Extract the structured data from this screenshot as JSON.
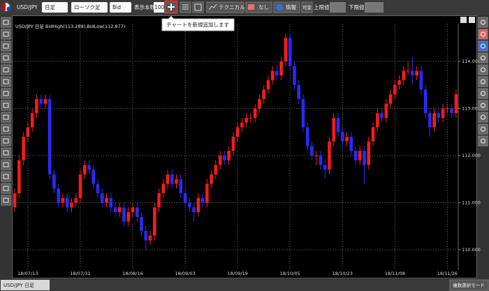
{
  "toolbar": {
    "symbol": "USD/JPY",
    "period": "日足",
    "chart_type": "ローソク足",
    "price": "Bid",
    "count_label": "表示本数",
    "count": 100,
    "technical": "テクニカル",
    "flag": "なし",
    "info": "情報",
    "variable": "可変",
    "upper": "上限値",
    "lower": "下限値"
  },
  "tooltip": "チャートを新規追加します",
  "bottom": {
    "tab": "USD/JPY 日足",
    "mode": "複数選択モード"
  },
  "chart_data": {
    "type": "candlestick",
    "header": "USD/JPY 日足 BidHigh(113.289),BidLow(112.877)",
    "categories": [
      null,
      null,
      null,
      "18/07/13",
      null,
      null,
      null,
      null,
      null,
      null,
      null,
      null,
      null,
      null,
      null,
      "18/07/31",
      null,
      null,
      null,
      null,
      null,
      null,
      null,
      null,
      null,
      null,
      null,
      "18/08/16",
      null,
      null,
      null,
      null,
      null,
      null,
      null,
      null,
      null,
      null,
      null,
      "18/09/03",
      null,
      null,
      null,
      null,
      null,
      null,
      null,
      null,
      null,
      null,
      null,
      "18/09/19",
      null,
      null,
      null,
      null,
      null,
      null,
      null,
      null,
      null,
      null,
      null,
      "18/10/05",
      null,
      null,
      null,
      null,
      null,
      null,
      null,
      null,
      null,
      null,
      null,
      "18/10/23",
      null,
      null,
      null,
      null,
      null,
      null,
      null,
      null,
      null,
      null,
      null,
      "18/11/08",
      null,
      null,
      null,
      null,
      null,
      null,
      null,
      null,
      null,
      null,
      null,
      "18/11/26",
      null,
      null
    ],
    "open": [
      110.9,
      111.2,
      111.9,
      112.4,
      112.6,
      112.9,
      113.2,
      113.1,
      113.2,
      111.6,
      111.3,
      111.0,
      111.1,
      110.9,
      111.0,
      111.1,
      111.6,
      111.8,
      111.7,
      111.4,
      111.2,
      111.0,
      111.1,
      110.9,
      110.8,
      110.9,
      110.6,
      110.8,
      110.9,
      110.7,
      110.4,
      110.2,
      110.3,
      110.9,
      111.2,
      111.4,
      111.6,
      111.4,
      111.5,
      111.2,
      111.0,
      110.9,
      110.8,
      111.1,
      111.0,
      111.4,
      111.6,
      111.8,
      112.0,
      111.9,
      112.1,
      112.4,
      112.6,
      112.7,
      112.8,
      112.8,
      113.0,
      113.2,
      113.4,
      113.6,
      113.8,
      113.7,
      114.0,
      114.5,
      113.9,
      113.5,
      113.2,
      112.6,
      112.2,
      112.0,
      112.0,
      111.8,
      111.7,
      112.3,
      112.8,
      112.5,
      112.3,
      112.4,
      112.1,
      111.9,
      112.1,
      111.8,
      112.3,
      112.6,
      112.9,
      112.8,
      113.1,
      113.3,
      113.5,
      113.6,
      113.8,
      113.8,
      113.7,
      113.8,
      113.4,
      112.9,
      112.6,
      112.9,
      112.8,
      113.0,
      113.0,
      112.9
    ],
    "high": [
      111.3,
      112.0,
      112.5,
      112.7,
      113.0,
      113.3,
      113.3,
      113.3,
      113.3,
      111.7,
      111.4,
      111.2,
      111.2,
      111.1,
      111.2,
      111.7,
      111.9,
      111.9,
      111.8,
      111.5,
      111.3,
      111.2,
      111.2,
      111.0,
      111.0,
      111.0,
      110.9,
      111.0,
      111.0,
      110.8,
      110.5,
      110.4,
      111.0,
      111.3,
      111.5,
      111.7,
      111.7,
      111.6,
      111.6,
      111.3,
      111.1,
      111.0,
      111.2,
      111.2,
      111.5,
      111.7,
      111.9,
      112.1,
      112.1,
      112.2,
      112.5,
      112.7,
      112.8,
      112.9,
      112.9,
      113.1,
      113.3,
      113.5,
      113.7,
      113.9,
      113.9,
      114.1,
      114.6,
      114.6,
      114.0,
      113.6,
      113.3,
      112.7,
      112.3,
      112.1,
      112.1,
      111.9,
      112.4,
      112.9,
      112.9,
      112.6,
      112.5,
      112.5,
      112.2,
      112.2,
      112.2,
      112.4,
      112.7,
      113.0,
      113.0,
      113.2,
      113.4,
      113.6,
      113.7,
      113.9,
      114.0,
      114.1,
      113.9,
      113.9,
      113.5,
      113.0,
      113.0,
      113.0,
      113.1,
      113.1,
      113.1,
      113.4
    ],
    "low": [
      110.8,
      111.1,
      111.8,
      112.3,
      112.5,
      112.8,
      113.0,
      113.0,
      111.5,
      111.2,
      110.9,
      110.9,
      110.8,
      110.8,
      110.9,
      111.0,
      111.5,
      111.6,
      111.3,
      111.1,
      110.9,
      110.9,
      110.8,
      110.7,
      110.7,
      110.5,
      110.5,
      110.7,
      110.6,
      110.3,
      110.0,
      110.1,
      110.2,
      110.8,
      111.1,
      111.3,
      111.3,
      111.3,
      111.1,
      110.9,
      110.8,
      110.6,
      110.7,
      110.9,
      110.9,
      111.3,
      111.5,
      111.7,
      111.8,
      111.8,
      112.0,
      112.3,
      112.5,
      112.6,
      112.7,
      112.7,
      112.9,
      113.1,
      113.3,
      113.5,
      113.6,
      113.6,
      113.9,
      113.8,
      113.4,
      113.1,
      112.5,
      112.1,
      111.9,
      111.8,
      111.7,
      111.5,
      111.6,
      112.2,
      112.4,
      112.2,
      112.2,
      112.0,
      111.8,
      111.8,
      111.4,
      111.7,
      112.2,
      112.5,
      112.7,
      112.7,
      113.0,
      113.2,
      113.4,
      113.5,
      113.7,
      113.5,
      113.6,
      113.3,
      112.8,
      112.4,
      112.5,
      112.7,
      112.7,
      112.9,
      112.8,
      112.8
    ],
    "close": [
      111.2,
      111.9,
      112.4,
      112.6,
      112.9,
      113.2,
      113.1,
      113.2,
      111.6,
      111.3,
      111.0,
      111.1,
      110.9,
      111.0,
      111.1,
      111.6,
      111.8,
      111.7,
      111.4,
      111.2,
      111.0,
      111.1,
      110.9,
      110.8,
      110.9,
      110.6,
      110.8,
      110.9,
      110.7,
      110.4,
      110.2,
      110.3,
      110.9,
      111.2,
      111.4,
      111.6,
      111.4,
      111.5,
      111.2,
      111.0,
      110.9,
      110.8,
      111.1,
      111.0,
      111.4,
      111.6,
      111.8,
      112.0,
      111.9,
      112.1,
      112.4,
      112.6,
      112.7,
      112.8,
      112.8,
      113.0,
      113.2,
      113.4,
      113.6,
      113.8,
      113.7,
      114.0,
      114.5,
      113.9,
      113.5,
      113.2,
      112.6,
      112.2,
      112.0,
      112.0,
      111.8,
      111.7,
      112.3,
      112.8,
      112.5,
      112.3,
      112.4,
      112.1,
      111.9,
      112.1,
      111.8,
      112.3,
      112.6,
      112.9,
      112.8,
      113.1,
      113.3,
      113.5,
      113.6,
      113.8,
      113.8,
      113.7,
      113.8,
      113.4,
      112.9,
      112.6,
      112.9,
      112.8,
      113.0,
      113.0,
      112.9,
      113.3
    ],
    "up_color": "#ff1a1a",
    "down_color": "#2a2aff",
    "ylim": [
      109.6,
      114.65
    ],
    "yticks": [
      {
        "value": 110,
        "label": "110.000"
      },
      {
        "value": 111,
        "label": "111.000"
      },
      {
        "value": 112,
        "label": "112.000"
      },
      {
        "value": 113,
        "label": "113.000"
      },
      {
        "value": 114,
        "label": "114.000"
      }
    ],
    "grid": true
  }
}
